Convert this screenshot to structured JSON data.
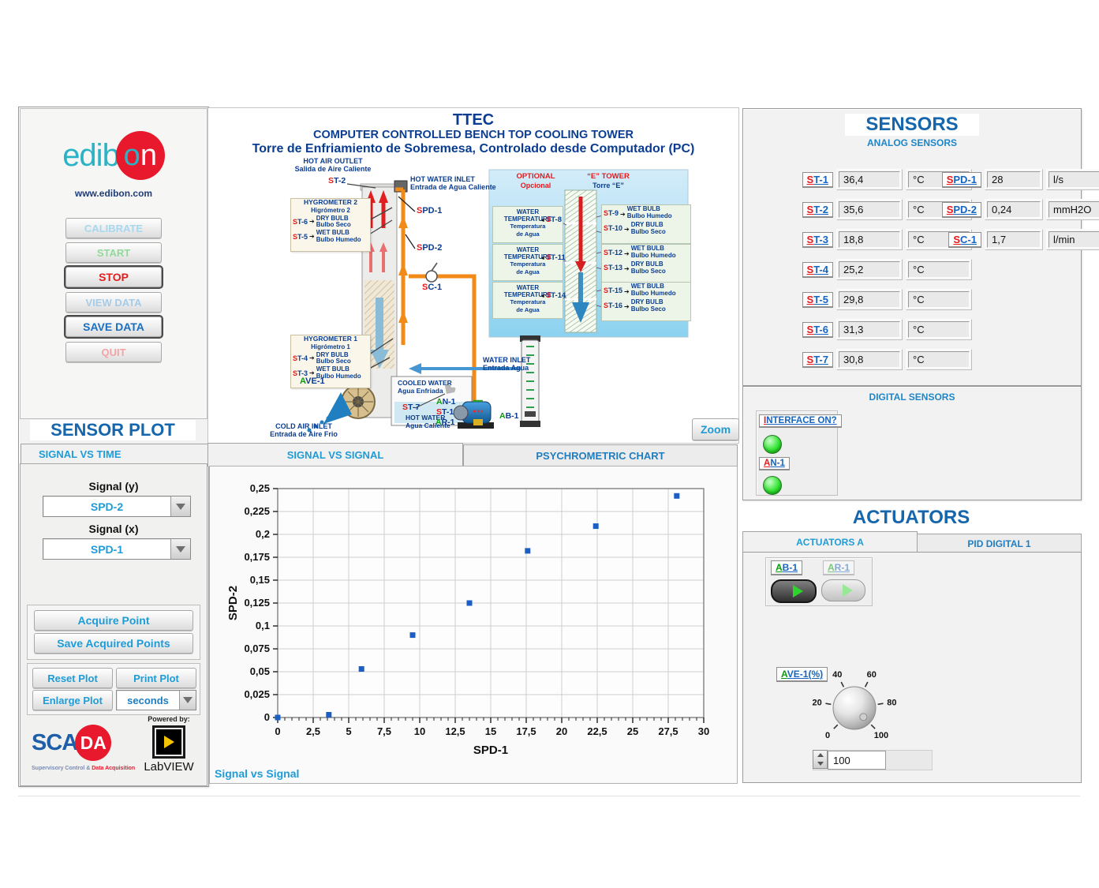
{
  "sidebar": {
    "logo": {
      "part1": "edib",
      "part2_o": "o",
      "part2_n": "n"
    },
    "website": "www.edibon.com",
    "buttons": {
      "calibrate": "CALIBRATE",
      "start": "START",
      "stop": "STOP",
      "view_data": "VIEW DATA",
      "save_data": "SAVE DATA",
      "quit": "QUIT"
    },
    "sensor_plot_title": "SENSOR PLOT",
    "tabs": {
      "signal_vs_time": "SIGNAL VS TIME"
    },
    "signal_y_label": "Signal (y)",
    "signal_y_value": "SPD-2",
    "signal_x_label": "Signal (x)",
    "signal_x_value": "SPD-1",
    "acquire_point": "Acquire Point",
    "save_acquired_points": "Save Acquired Points",
    "reset_plot": "Reset Plot",
    "print_plot": "Print Plot",
    "enlarge_plot": "Enlarge Plot",
    "interval_unit": "seconds",
    "scada": {
      "part1": "SCA",
      "part2": "DA",
      "subtitle1": "Supervisory Control &",
      "subtitle2": " Data Acquisition"
    },
    "powered_by": "Powered by:",
    "labview": "LabVIEW"
  },
  "diagram": {
    "title1": "TTEC",
    "title2": "COMPUTER CONTROLLED BENCH TOP COOLING TOWER",
    "title3": "Torre de Enfriamiento de Sobremesa, Controlado desde Computador (PC)",
    "labels": {
      "hot_air_outlet_en": "HOT AIR OUTLET",
      "hot_air_outlet_es": "Salida de Aire Caliente",
      "hot_water_inlet_en": "HOT WATER INLET",
      "hot_water_inlet_es": "Entrada de Agua Caliente",
      "hygrometer2_en": "HYGROMETER 2",
      "hygrometer2_es": "Higrómetro 2",
      "hygrometer1_en": "HYGROMETER 1",
      "hygrometer1_es": "Higrómetro 1",
      "dry_bulb_en": "DRY BULB",
      "dry_bulb_es": "Bulbo Seco",
      "wet_bulb_en": "WET BULB",
      "wet_bulb_es": "Bulbo Humedo",
      "cooled_water_en": "COOLED WATER",
      "cooled_water_es": "Agua Enfriada",
      "hot_water_en": "HOT WATER",
      "hot_water_es": "Agua Caliente",
      "cold_air_inlet_en": "COLD AIR INLET",
      "cold_air_inlet_es": "Entrada de Aire Frio",
      "water_inlet_en": "WATER INLET",
      "water_inlet_es": "Entrada Agua",
      "optional_en": "OPTIONAL",
      "optional_es": "Opcional",
      "etower_en": "“E” TOWER",
      "etower_es": "Torre “E”",
      "water_en1": "WATER",
      "water_en2": "TEMPERATURE",
      "water_es1": "Temperatura",
      "water_es2": "de Agua"
    },
    "tags": {
      "st1": {
        "p": "S",
        "r": "T-1"
      },
      "st2": {
        "p": "S",
        "r": "T-2"
      },
      "st3": {
        "p": "S",
        "r": "T-3"
      },
      "st4": {
        "p": "S",
        "r": "T-4"
      },
      "st5": {
        "p": "S",
        "r": "T-5"
      },
      "st6": {
        "p": "S",
        "r": "T-6"
      },
      "st7": {
        "p": "S",
        "r": "T-7"
      },
      "st8": {
        "p": "S",
        "r": "T-8"
      },
      "st9": {
        "p": "S",
        "r": "T-9"
      },
      "st10": {
        "p": "S",
        "r": "T-10"
      },
      "st11": {
        "p": "S",
        "r": "T-11"
      },
      "st12": {
        "p": "S",
        "r": "T-12"
      },
      "st13": {
        "p": "S",
        "r": "T-13"
      },
      "st14": {
        "p": "S",
        "r": "T-14"
      },
      "st15": {
        "p": "S",
        "r": "T-15"
      },
      "st16": {
        "p": "S",
        "r": "T-16"
      },
      "spd1": {
        "p": "S",
        "r": "PD-1"
      },
      "spd2": {
        "p": "S",
        "r": "PD-2"
      },
      "sc1": {
        "p": "S",
        "r": "C-1"
      },
      "ave1": {
        "p": "A",
        "r": "VE-1"
      },
      "an1": {
        "p": "A",
        "r": "N-1"
      },
      "ar1": {
        "p": "A",
        "r": "R-1"
      },
      "ab1": {
        "p": "A",
        "r": "B-1"
      }
    },
    "zoom_button": "Zoom"
  },
  "plot": {
    "tab_signal_vs_signal": "SIGNAL VS SIGNAL",
    "tab_psychrometric": "PSYCHROMETRIC CHART",
    "caption": "Signal vs Signal"
  },
  "chart_data": {
    "type": "scatter",
    "title": "",
    "xlabel": "SPD-1",
    "ylabel": "SPD-2",
    "xlim": [
      0,
      30
    ],
    "ylim": [
      0,
      0.25
    ],
    "x_ticks": [
      "0",
      "2,5",
      "5",
      "7,5",
      "10",
      "12,5",
      "15",
      "17,5",
      "20",
      "22,5",
      "25",
      "27,5",
      "30"
    ],
    "y_ticks": [
      "0",
      "0,025",
      "0,05",
      "0,075",
      "0,1",
      "0,125",
      "0,15",
      "0,175",
      "0,2",
      "0,225",
      "0,25"
    ],
    "x_minor_step": 0.5,
    "grid": true,
    "legend_position": "none",
    "point_color": "#1b5fc4",
    "points": [
      [
        0,
        0
      ],
      [
        3.6,
        0.003
      ],
      [
        5.9,
        0.053
      ],
      [
        9.5,
        0.09
      ],
      [
        13.5,
        0.125
      ],
      [
        17.6,
        0.182
      ],
      [
        22.4,
        0.209
      ],
      [
        28.1,
        0.242
      ]
    ]
  },
  "sensors_panel": {
    "title": "SENSORS",
    "subtitle": "ANALOG SENSORS",
    "left": [
      {
        "p": "S",
        "r": "T-1",
        "value": "36,4",
        "unit": "°C"
      },
      {
        "p": "S",
        "r": "T-2",
        "value": "35,6",
        "unit": "°C"
      },
      {
        "p": "S",
        "r": "T-3",
        "value": "18,8",
        "unit": "°C"
      },
      {
        "p": "S",
        "r": "T-4",
        "value": "25,2",
        "unit": "°C"
      },
      {
        "p": "S",
        "r": "T-5",
        "value": "29,8",
        "unit": "°C"
      },
      {
        "p": "S",
        "r": "T-6",
        "value": "31,3",
        "unit": "°C"
      },
      {
        "p": "S",
        "r": "T-7",
        "value": "30,8",
        "unit": "°C"
      }
    ],
    "right": [
      {
        "p": "S",
        "r": "PD-1",
        "value": "28",
        "unit": "l/s"
      },
      {
        "p": "S",
        "r": "PD-2",
        "value": "0,24",
        "unit": "mmH2O"
      },
      {
        "p": "S",
        "r": "C-1",
        "value": "1,7",
        "unit": "l/min"
      }
    ],
    "digital_title": "DIGITAL SENSORS",
    "interface_on": {
      "p": "I",
      "r": "NTERFACE ON?"
    },
    "an1": {
      "p": "A",
      "r": "N-1"
    }
  },
  "actuators": {
    "title": "ACTUATORS",
    "tab_a": "ACTUATORS A",
    "tab_pid": "PID DIGITAL 1",
    "ab1": {
      "p": "A",
      "r": "B-1"
    },
    "ar1": {
      "p": "A",
      "r": "R-1"
    },
    "ave1": {
      "p": "A",
      "r": "VE-1(%)"
    },
    "knob_ticks": [
      "0",
      "20",
      "40",
      "60",
      "80",
      "100"
    ],
    "knob_value": "100"
  }
}
